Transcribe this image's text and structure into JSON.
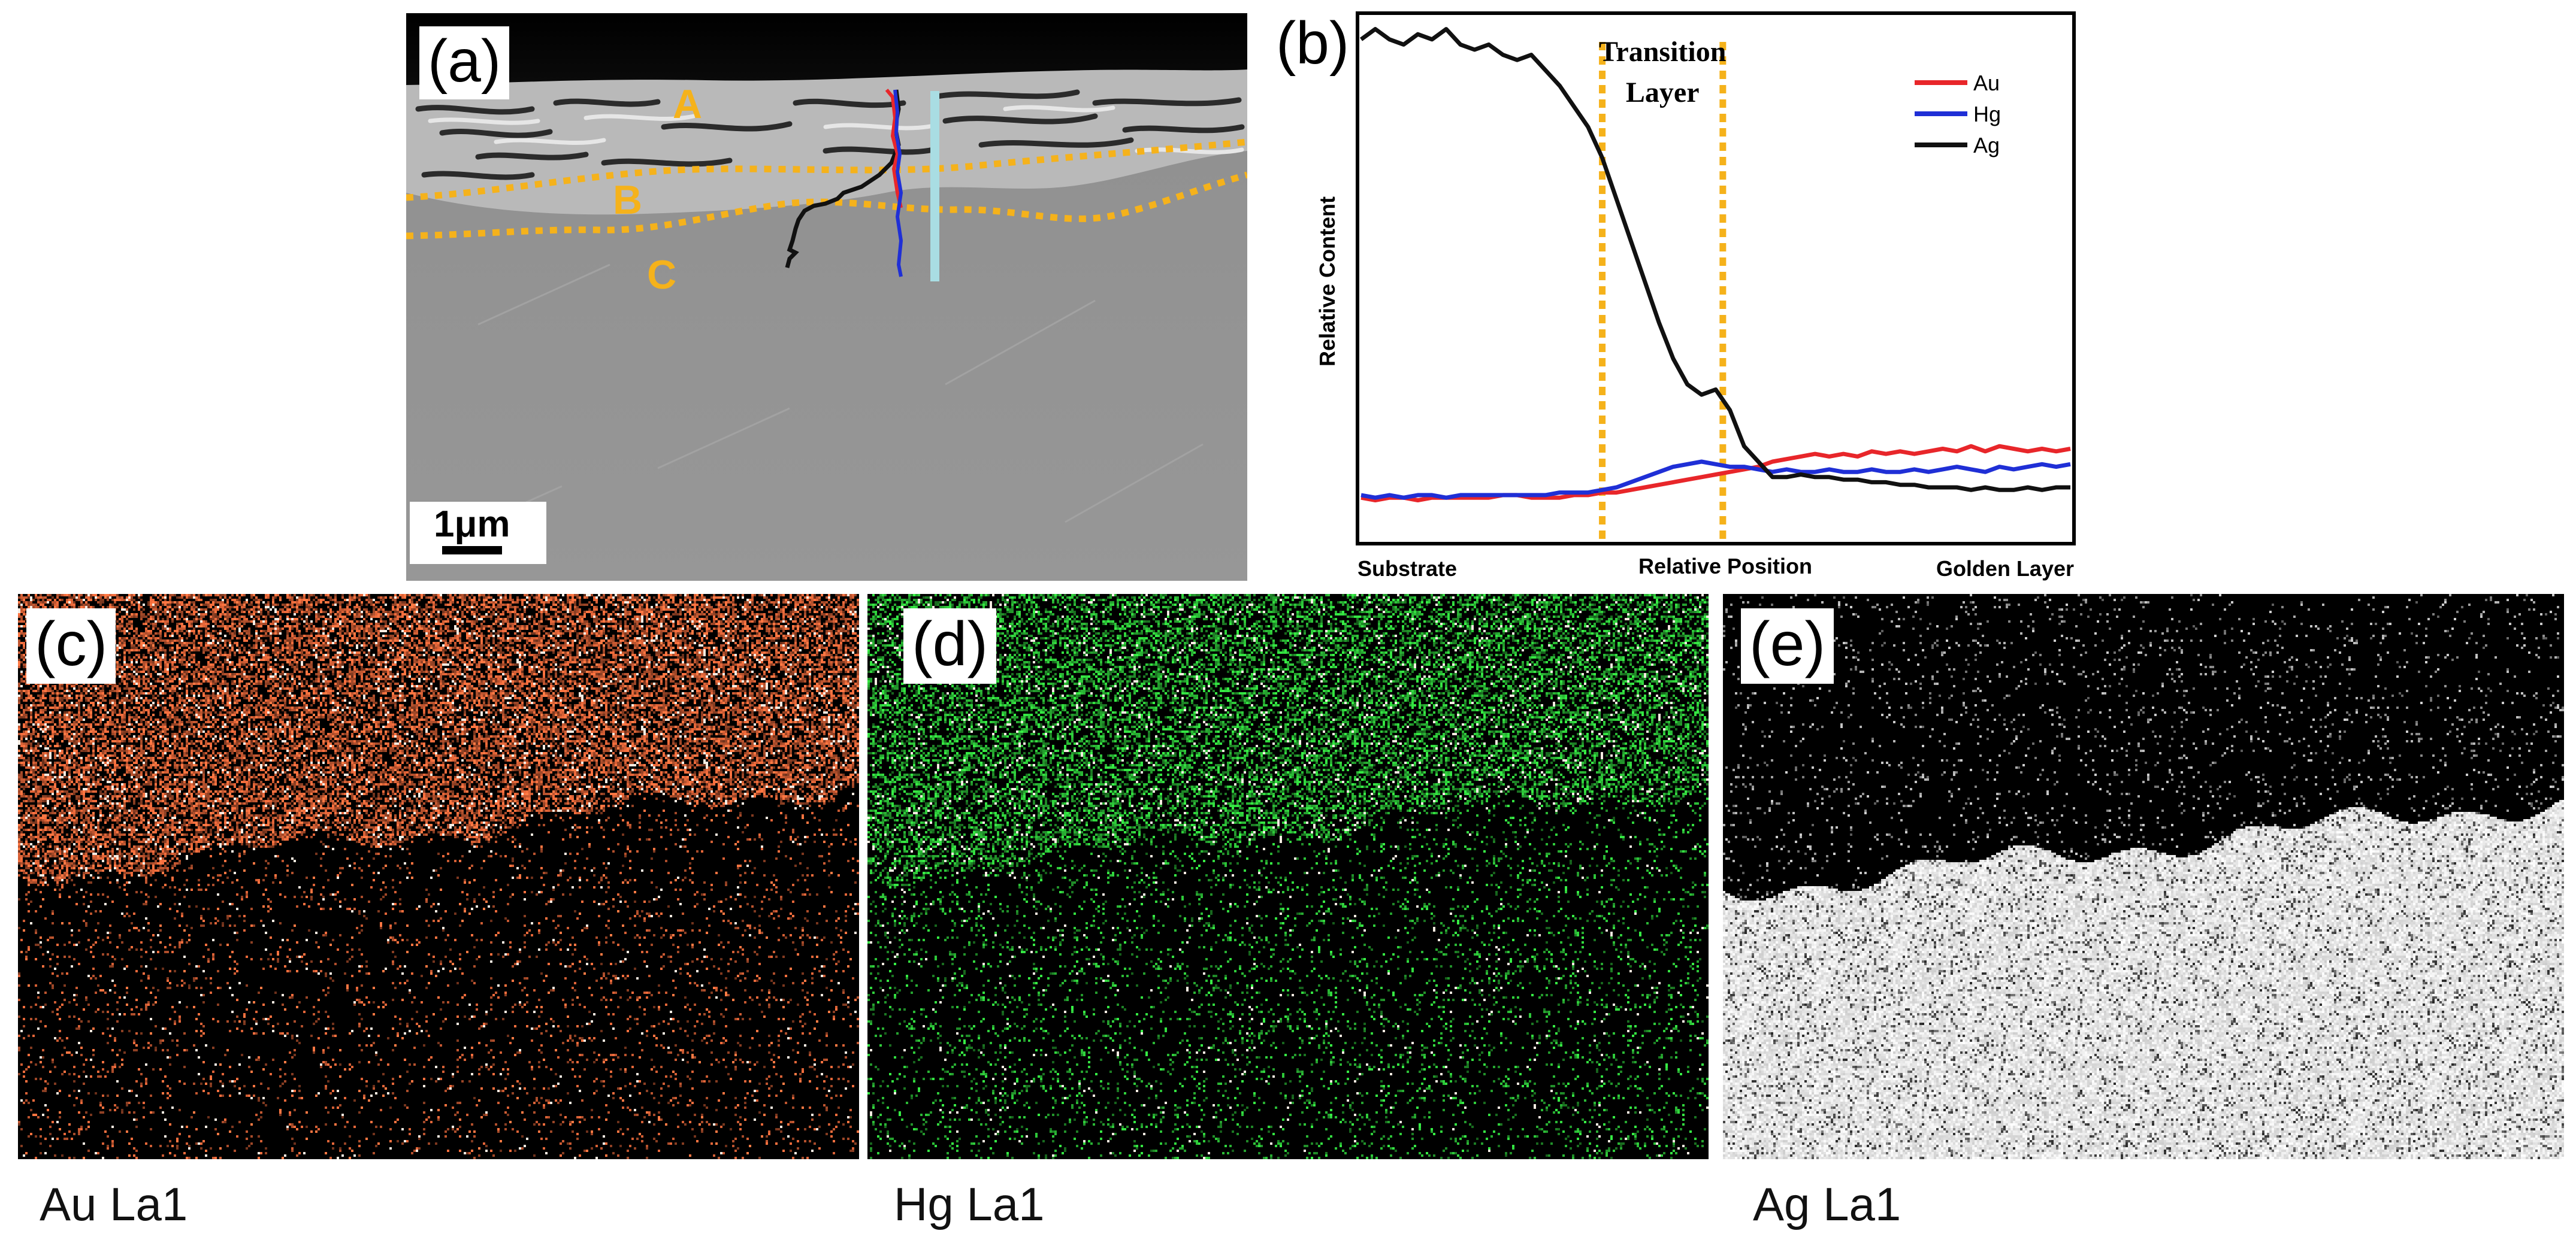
{
  "panels": {
    "a": {
      "label": "(a)",
      "region_labels": [
        "A",
        "B",
        "C"
      ],
      "scale_bar": "1μm",
      "colors": {
        "boundary": "#f5b21b",
        "line_scan": "#a9dde3",
        "Au": "#e8262a",
        "Hg": "#1f2fd6",
        "Ag": "#111111"
      }
    },
    "b": {
      "label": "(b)",
      "annotation_line1": "Transition",
      "annotation_line2": "Layer"
    },
    "c": {
      "label": "(c)",
      "caption": "Au La1",
      "color": "#e8683a"
    },
    "d": {
      "label": "(d)",
      "caption": "Hg La1",
      "color": "#2ec93a"
    },
    "e": {
      "label": "(e)",
      "caption": "Ag La1",
      "color": "#f2f2f2"
    }
  },
  "chart_data": {
    "type": "line",
    "xlabel": "Relative Position",
    "x_start_label": "Substrate",
    "x_end_label": "Golden Layer",
    "ylabel": "Relative Content",
    "xlim": [
      0,
      100
    ],
    "ylim": [
      0,
      100
    ],
    "grid": false,
    "legend_position": "top-right",
    "transition_bounds": [
      34,
      51
    ],
    "x": [
      0,
      2,
      4,
      6,
      8,
      10,
      12,
      14,
      16,
      18,
      20,
      22,
      24,
      26,
      28,
      30,
      32,
      34,
      36,
      38,
      40,
      42,
      44,
      46,
      48,
      50,
      52,
      54,
      56,
      58,
      60,
      62,
      64,
      66,
      68,
      70,
      72,
      74,
      76,
      78,
      80,
      82,
      84,
      86,
      88,
      90,
      92,
      94,
      96,
      98,
      100
    ],
    "series": [
      {
        "name": "Au",
        "color": "#e8262a",
        "values": [
          8,
          7.5,
          8,
          8,
          7.5,
          8,
          8,
          8,
          8,
          8,
          8.5,
          8.5,
          8,
          8,
          8,
          8.5,
          8.5,
          9,
          9,
          9.5,
          10,
          10.5,
          11,
          11.5,
          12,
          12.5,
          13,
          13.5,
          14,
          15,
          15.5,
          16,
          16.5,
          16,
          16.5,
          16,
          17,
          16.5,
          17,
          16.5,
          17,
          17.5,
          17,
          18,
          17,
          18,
          17.5,
          17,
          17.5,
          17,
          17.5
        ]
      },
      {
        "name": "Hg",
        "color": "#1f2fd6",
        "values": [
          8.5,
          8,
          8.5,
          8,
          8.5,
          8.5,
          8,
          8.5,
          8.5,
          8.5,
          8.5,
          8.5,
          8.5,
          8.5,
          9,
          9,
          9,
          9.5,
          10,
          11,
          12,
          13,
          14,
          14.5,
          15,
          14.5,
          14,
          14,
          13.5,
          13,
          13.5,
          13,
          13,
          13.5,
          13,
          13,
          13.5,
          13,
          13,
          13.5,
          13,
          13.5,
          14,
          13.5,
          13,
          14,
          13.5,
          14,
          14.5,
          14,
          14.5
        ]
      },
      {
        "name": "Ag",
        "color": "#111111",
        "values": [
          97,
          99,
          97,
          96,
          98,
          97,
          99,
          96,
          95,
          96,
          94,
          93,
          94,
          91,
          88,
          84,
          80,
          74,
          66,
          58,
          50,
          42,
          35,
          30,
          28,
          29,
          25,
          18,
          15,
          12,
          12,
          12.5,
          12,
          12,
          11.5,
          11.5,
          11,
          11,
          10.5,
          10.5,
          10,
          10,
          10,
          9.5,
          10,
          9.5,
          9.5,
          10,
          9.5,
          10,
          10
        ]
      }
    ]
  }
}
